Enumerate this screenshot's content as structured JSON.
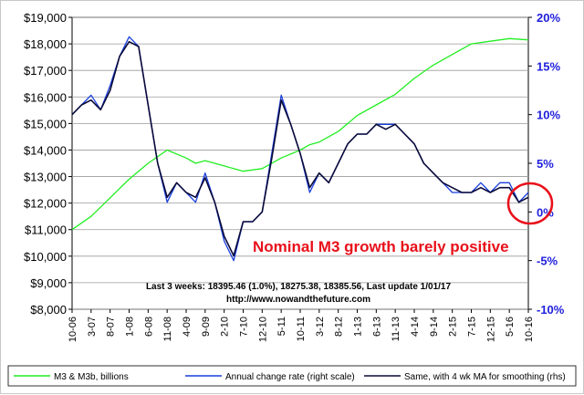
{
  "chart_data": {
    "type": "line",
    "title": "",
    "annotation": "Nominal M3 growth barely positive",
    "notes": [
      "Last 3 weeks: 18395.46 (1.0%), 18275.38, 18385.56, Last update 1/01/17",
      "http://www.nowandthefuture.com"
    ],
    "y_left": {
      "range": [
        8000,
        19000
      ],
      "tick_values": [
        8000,
        9000,
        10000,
        11000,
        12000,
        13000,
        14000,
        15000,
        16000,
        17000,
        18000,
        19000
      ],
      "tick_labels": [
        "$8,000",
        "$9,000",
        "$10,000",
        "$11,000",
        "$12,000",
        "$13,000",
        "$14,000",
        "$15,000",
        "$16,000",
        "$17,000",
        "$18,000",
        "$19,000"
      ]
    },
    "y_right": {
      "range": [
        -10,
        20
      ],
      "tick_values": [
        -10,
        -5,
        0,
        5,
        10,
        15,
        20
      ],
      "tick_labels": [
        "-10%",
        "-5%",
        "0%",
        "5%",
        "10%",
        "15%",
        "20%"
      ]
    },
    "x_tick_labels": [
      "10-06",
      "3-07",
      "8-07",
      "1-08",
      "6-08",
      "11-08",
      "4-09",
      "9-09",
      "2-10",
      "7-10",
      "12-10",
      "5-11",
      "10-11",
      "3-12",
      "8-12",
      "1-13",
      "6-13",
      "11-13",
      "4-14",
      "9-14",
      "2-15",
      "7-15",
      "12-15",
      "5-16",
      "10-16"
    ],
    "grid": true,
    "legend_position": "bottom",
    "series": [
      {
        "name": "M3 & M3b, billions",
        "axis": "left",
        "color": "#22ee22",
        "x": [
          0,
          1,
          2,
          3,
          4,
          5,
          6,
          6.5,
          7,
          8,
          9,
          10,
          11,
          12,
          12.5,
          13,
          14,
          15,
          16,
          17,
          18,
          19,
          20,
          21,
          22,
          23,
          24
        ],
        "y": [
          11000,
          11500,
          12200,
          12900,
          13500,
          14000,
          13700,
          13500,
          13600,
          13400,
          13200,
          13300,
          13700,
          14000,
          14200,
          14300,
          14700,
          15300,
          15700,
          16100,
          16700,
          17200,
          17600,
          18000,
          18100,
          18200,
          18150
        ]
      },
      {
        "name": "Annual change rate (right scale)",
        "axis": "right",
        "color": "#1a3fdd",
        "x": [
          0,
          0.5,
          1,
          1.5,
          2,
          2.5,
          3,
          3.5,
          4,
          4.5,
          5,
          5.5,
          6,
          6.5,
          7,
          7.5,
          8,
          8.5,
          9,
          9.5,
          10,
          10.5,
          11,
          11.5,
          12,
          12.5,
          13,
          13.5,
          14,
          14.5,
          15,
          15.5,
          16,
          16.5,
          17,
          17.5,
          18,
          18.5,
          19,
          19.5,
          20,
          20.5,
          21,
          21.5,
          22,
          22.5,
          23,
          23.5,
          24
        ],
        "y": [
          10,
          11,
          12,
          10.5,
          13,
          16,
          18,
          17,
          11,
          5,
          1,
          3,
          2,
          1,
          4,
          1,
          -3,
          -5,
          -1,
          -1,
          0,
          6,
          12,
          9,
          6,
          2,
          4,
          3,
          5,
          7,
          8,
          8,
          9,
          9,
          9,
          8,
          7,
          5,
          4,
          3,
          2,
          2,
          2,
          3,
          2,
          3,
          3,
          1,
          2
        ]
      },
      {
        "name": "Same, with 4 wk MA for smoothing (rhs)",
        "axis": "right",
        "color": "#0a0a3a",
        "x": [
          0,
          0.5,
          1,
          1.5,
          2,
          2.5,
          3,
          3.5,
          4,
          4.5,
          5,
          5.5,
          6,
          6.5,
          7,
          7.5,
          8,
          8.5,
          9,
          9.5,
          10,
          10.5,
          11,
          11.5,
          12,
          12.5,
          13,
          13.5,
          14,
          14.5,
          15,
          15.5,
          16,
          16.5,
          17,
          17.5,
          18,
          18.5,
          19,
          19.5,
          20,
          20.5,
          21,
          21.5,
          22,
          22.5,
          23,
          23.5,
          24
        ],
        "y": [
          10,
          11,
          11.5,
          10.5,
          12.5,
          16,
          17.5,
          17,
          11,
          5,
          1.5,
          3,
          2,
          1.5,
          3.5,
          1,
          -2.5,
          -4.5,
          -1,
          -1,
          0,
          5.5,
          11.5,
          9,
          6,
          2.5,
          4,
          3,
          5,
          7,
          8,
          8,
          9,
          8.5,
          9,
          8,
          7,
          5,
          4,
          3,
          2.5,
          2,
          2,
          2.5,
          2,
          2.5,
          2.5,
          1,
          1.5
        ]
      }
    ]
  }
}
